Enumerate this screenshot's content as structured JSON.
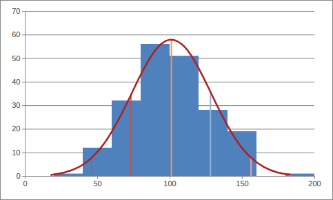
{
  "chart_data": {
    "type": "histogram",
    "bins": [
      20,
      40,
      60,
      80,
      100,
      120,
      140,
      160,
      180,
      200
    ],
    "values": [
      1,
      12,
      32,
      56,
      51,
      28,
      19,
      0,
      1
    ],
    "color": "#4f81bd",
    "xlim": [
      0,
      200
    ],
    "xticks": [
      0,
      50,
      100,
      150,
      200
    ],
    "ylim": [
      0,
      70
    ],
    "yticks": [
      0,
      10,
      20,
      30,
      40,
      50,
      60,
      70
    ],
    "grid": true,
    "curve": {
      "type": "line",
      "color": "#b21e1e",
      "x": [
        18,
        27,
        37,
        46,
        55,
        64,
        73,
        82,
        92,
        101,
        110,
        119,
        128,
        137,
        147,
        156,
        165,
        174,
        183
      ],
      "values": [
        0.6,
        1.6,
        3.9,
        7.9,
        14.3,
        23.5,
        34.5,
        45.7,
        55.0,
        58.0,
        55.0,
        46.8,
        35.8,
        24.6,
        14.3,
        7.9,
        3.9,
        1.7,
        0.7
      ]
    },
    "rules": {
      "type": "rule",
      "x": [
        18,
        46,
        73,
        101,
        128,
        156,
        183
      ],
      "values": [
        0.6,
        7.9,
        34.5,
        58.0,
        35.8,
        7.9,
        0.7
      ],
      "colors": [
        "#9bbb59",
        "#8064a2",
        "#c0504d",
        "#f79646",
        "#95b3d7",
        "#e6a3a1",
        "#f7c244"
      ]
    }
  }
}
